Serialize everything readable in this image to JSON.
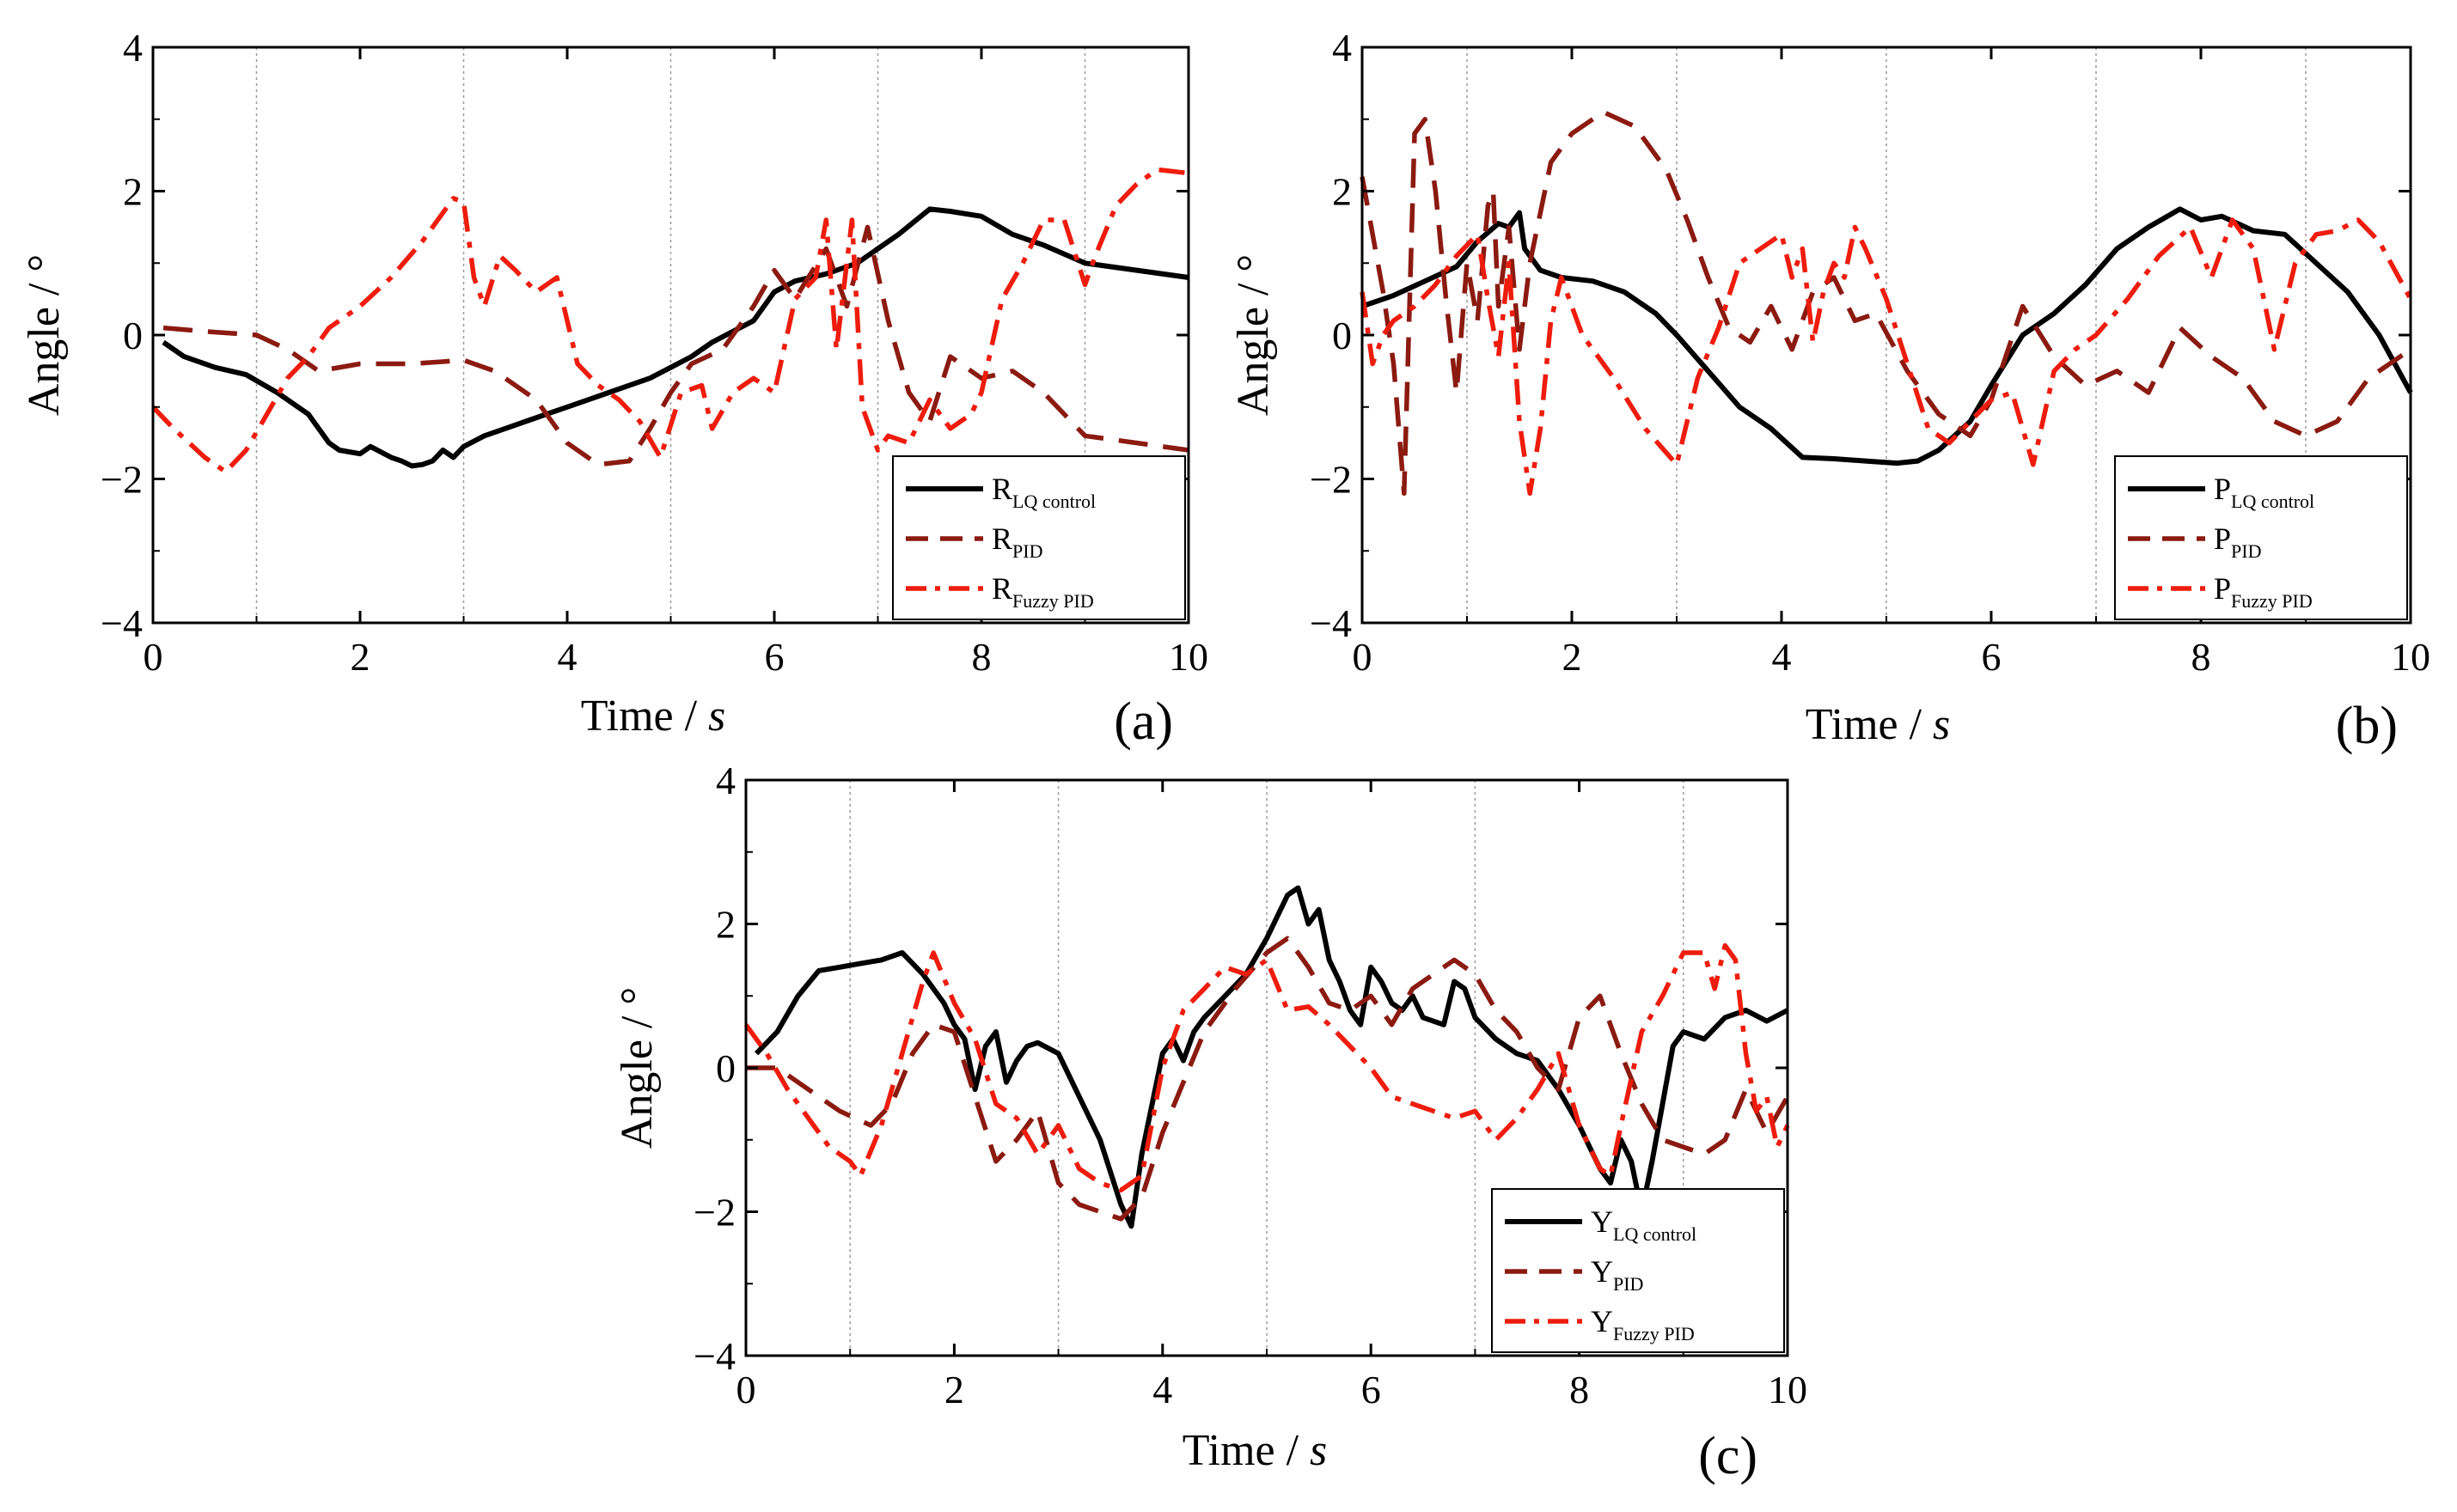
{
  "figure": {
    "panels": [
      "a",
      "b",
      "c"
    ]
  },
  "colors": {
    "lq": "#000000",
    "pid": "#8b1a10",
    "fuzzy": "#ee1c0c",
    "grid": "#999999"
  },
  "chart_data": [
    {
      "type": "line",
      "panel_label": "(a)",
      "xlabel": "Time / ",
      "xlabel_unit": "s",
      "ylabel": "Angle / °",
      "xlim": [
        0,
        10
      ],
      "ylim": [
        -4,
        4
      ],
      "xticks": [
        "0",
        "2",
        "4",
        "6",
        "8",
        "10"
      ],
      "yticks": [
        "4",
        "2",
        "0",
        "−2",
        "−4"
      ],
      "grid_x": [
        1,
        3,
        5,
        7,
        9
      ],
      "legend_position": "bottom-right",
      "series": [
        {
          "name": "R",
          "sub": "LQ control",
          "style": "solid",
          "color": "#000000",
          "x": [
            0.1,
            0.3,
            0.6,
            0.9,
            1.2,
            1.5,
            1.7,
            1.8,
            2.0,
            2.1,
            2.3,
            2.4,
            2.5,
            2.6,
            2.7,
            2.8,
            2.9,
            3.0,
            3.2,
            3.4,
            3.6,
            3.8,
            4.0,
            4.2,
            4.4,
            4.6,
            4.8,
            5.0,
            5.2,
            5.4,
            5.6,
            5.8,
            6.0,
            6.2,
            6.5,
            6.8,
            7.0,
            7.2,
            7.5,
            7.7,
            8.0,
            8.3,
            8.6,
            9.0,
            9.5,
            10.0
          ],
          "y": [
            -0.1,
            -0.3,
            -0.45,
            -0.55,
            -0.8,
            -1.1,
            -1.5,
            -1.6,
            -1.65,
            -1.55,
            -1.7,
            -1.75,
            -1.82,
            -1.8,
            -1.75,
            -1.6,
            -1.7,
            -1.55,
            -1.4,
            -1.3,
            -1.2,
            -1.1,
            -1.0,
            -0.9,
            -0.8,
            -0.7,
            -0.6,
            -0.45,
            -0.3,
            -0.1,
            0.05,
            0.2,
            0.6,
            0.75,
            0.85,
            1.0,
            1.2,
            1.4,
            1.75,
            1.72,
            1.65,
            1.4,
            1.25,
            1.0,
            0.9,
            0.8
          ]
        },
        {
          "name": "R",
          "sub": "PID",
          "style": "dashed",
          "color": "#8b1a10",
          "x": [
            0.1,
            0.5,
            1.0,
            1.3,
            1.6,
            2.0,
            2.5,
            3.0,
            3.3,
            3.7,
            4.0,
            4.3,
            4.6,
            4.8,
            5.0,
            5.2,
            5.5,
            5.8,
            6.0,
            6.2,
            6.5,
            6.7,
            6.9,
            7.1,
            7.3,
            7.5,
            7.7,
            8.0,
            8.3,
            8.6,
            9.0,
            9.5,
            10.0
          ],
          "y": [
            0.1,
            0.05,
            0.0,
            -0.2,
            -0.5,
            -0.4,
            -0.4,
            -0.35,
            -0.5,
            -0.9,
            -1.5,
            -1.8,
            -1.75,
            -1.3,
            -0.8,
            -0.4,
            -0.2,
            0.4,
            0.9,
            0.5,
            1.2,
            0.4,
            1.5,
            0.2,
            -0.8,
            -1.2,
            -0.3,
            -0.6,
            -0.5,
            -0.8,
            -1.4,
            -1.5,
            -1.6
          ]
        },
        {
          "name": "R",
          "sub": "Fuzzy PID",
          "style": "dashdot",
          "color": "#ee1c0c",
          "x": [
            0.0,
            0.2,
            0.5,
            0.7,
            0.9,
            1.1,
            1.3,
            1.5,
            1.7,
            2.0,
            2.3,
            2.6,
            2.9,
            3.0,
            3.1,
            3.2,
            3.35,
            3.5,
            3.7,
            3.9,
            4.1,
            4.3,
            4.5,
            4.7,
            4.9,
            5.1,
            5.3,
            5.4,
            5.6,
            5.8,
            6.0,
            6.2,
            6.4,
            6.5,
            6.6,
            6.75,
            6.85,
            7.0,
            7.1,
            7.3,
            7.5,
            7.7,
            7.8,
            7.9,
            8.0,
            8.2,
            8.4,
            8.6,
            8.8,
            9.0,
            9.1,
            9.3,
            9.5,
            9.7,
            10.0
          ],
          "y": [
            -1.0,
            -1.3,
            -1.7,
            -1.9,
            -1.6,
            -1.1,
            -0.6,
            -0.3,
            0.1,
            0.4,
            0.8,
            1.3,
            1.9,
            1.85,
            0.8,
            0.4,
            1.1,
            0.9,
            0.6,
            0.8,
            -0.4,
            -0.7,
            -0.9,
            -1.2,
            -1.7,
            -0.8,
            -0.7,
            -1.3,
            -0.8,
            -0.6,
            -0.8,
            0.5,
            0.8,
            1.6,
            -0.2,
            1.6,
            -1.0,
            -1.6,
            -1.4,
            -1.5,
            -0.9,
            -1.3,
            -1.2,
            -1.1,
            -0.8,
            0.5,
            1.0,
            1.6,
            1.6,
            0.7,
            1.1,
            1.8,
            2.1,
            2.3,
            2.25
          ]
        }
      ]
    },
    {
      "type": "line",
      "panel_label": "(b)",
      "xlabel": "Time / ",
      "xlabel_unit": "s",
      "ylabel": "Angle / °",
      "xlim": [
        0,
        10
      ],
      "ylim": [
        -4,
        4
      ],
      "xticks": [
        "0",
        "2",
        "4",
        "6",
        "8",
        "10"
      ],
      "yticks": [
        "4",
        "2",
        "0",
        "−2",
        "−4"
      ],
      "grid_x": [
        1,
        3,
        5,
        7,
        9
      ],
      "legend_position": "bottom-right",
      "series": [
        {
          "name": "P",
          "sub": "LQ control",
          "style": "solid",
          "color": "#000000",
          "x": [
            0.0,
            0.3,
            0.6,
            0.9,
            1.1,
            1.3,
            1.4,
            1.5,
            1.55,
            1.6,
            1.7,
            1.9,
            2.2,
            2.5,
            2.8,
            3.0,
            3.3,
            3.6,
            3.9,
            4.2,
            4.5,
            4.8,
            5.1,
            5.3,
            5.5,
            5.8,
            6.0,
            6.3,
            6.6,
            6.9,
            7.2,
            7.5,
            7.8,
            8.0,
            8.2,
            8.5,
            8.8,
            9.1,
            9.4,
            9.7,
            10.0
          ],
          "y": [
            0.4,
            0.55,
            0.75,
            0.95,
            1.3,
            1.55,
            1.5,
            1.7,
            1.2,
            1.1,
            0.9,
            0.8,
            0.75,
            0.6,
            0.3,
            0.0,
            -0.5,
            -1.0,
            -1.3,
            -1.7,
            -1.72,
            -1.75,
            -1.78,
            -1.75,
            -1.6,
            -1.2,
            -0.7,
            0.0,
            0.3,
            0.7,
            1.2,
            1.5,
            1.75,
            1.6,
            1.65,
            1.45,
            1.4,
            1.0,
            0.6,
            0.0,
            -0.8
          ]
        },
        {
          "name": "P",
          "sub": "PID",
          "style": "dashed",
          "color": "#8b1a10",
          "x": [
            0.0,
            0.2,
            0.3,
            0.4,
            0.5,
            0.6,
            0.7,
            0.8,
            0.9,
            1.0,
            1.1,
            1.2,
            1.25,
            1.3,
            1.4,
            1.5,
            1.6,
            1.8,
            2.0,
            2.3,
            2.6,
            2.9,
            3.1,
            3.3,
            3.5,
            3.7,
            3.9,
            4.1,
            4.3,
            4.5,
            4.7,
            4.9,
            5.2,
            5.5,
            5.8,
            6.0,
            6.3,
            6.6,
            6.9,
            7.2,
            7.5,
            7.8,
            8.1,
            8.4,
            8.7,
            9.0,
            9.3,
            9.6,
            10.0
          ],
          "y": [
            2.2,
            0.6,
            -0.4,
            -2.2,
            2.8,
            3.0,
            2.0,
            0.5,
            -0.8,
            1.0,
            0.2,
            1.8,
            2.0,
            0.4,
            1.5,
            -0.2,
            1.0,
            2.4,
            2.8,
            3.1,
            2.9,
            2.3,
            1.6,
            0.8,
            0.1,
            -0.1,
            0.4,
            -0.2,
            0.6,
            0.8,
            0.2,
            0.3,
            -0.5,
            -1.1,
            -1.4,
            -0.9,
            0.4,
            -0.3,
            -0.7,
            -0.5,
            -0.8,
            0.1,
            -0.3,
            -0.6,
            -1.2,
            -1.4,
            -1.2,
            -0.6,
            -0.2
          ]
        },
        {
          "name": "P",
          "sub": "Fuzzy PID",
          "style": "dashdot",
          "color": "#ee1c0c",
          "x": [
            0.0,
            0.1,
            0.2,
            0.3,
            0.5,
            0.7,
            0.9,
            1.1,
            1.2,
            1.3,
            1.4,
            1.5,
            1.6,
            1.7,
            1.8,
            1.9,
            2.1,
            2.4,
            2.7,
            3.0,
            3.2,
            3.4,
            3.6,
            3.8,
            4.0,
            4.1,
            4.2,
            4.3,
            4.4,
            4.5,
            4.6,
            4.7,
            4.8,
            5.0,
            5.2,
            5.4,
            5.6,
            5.8,
            6.0,
            6.2,
            6.4,
            6.6,
            6.8,
            7.0,
            7.3,
            7.6,
            7.9,
            8.1,
            8.3,
            8.5,
            8.7,
            8.9,
            9.1,
            9.3,
            9.5,
            9.7,
            10.0
          ],
          "y": [
            0.6,
            -0.4,
            0.0,
            0.2,
            0.4,
            0.7,
            1.1,
            1.4,
            0.5,
            -0.3,
            1.0,
            -1.2,
            -2.2,
            -1.3,
            0.2,
            0.8,
            0.0,
            -0.6,
            -1.3,
            -1.8,
            -0.6,
            0.1,
            1.0,
            1.2,
            1.4,
            0.8,
            1.2,
            -0.1,
            0.6,
            1.0,
            0.8,
            1.5,
            1.2,
            0.5,
            -0.4,
            -1.3,
            -1.5,
            -1.2,
            -0.9,
            -0.8,
            -1.8,
            -0.5,
            -0.2,
            0.0,
            0.5,
            1.1,
            1.5,
            0.8,
            1.6,
            1.2,
            -0.2,
            1.0,
            1.4,
            1.45,
            1.6,
            1.3,
            0.5
          ]
        }
      ]
    },
    {
      "type": "line",
      "panel_label": "(c)",
      "xlabel": "Time / ",
      "xlabel_unit": "s",
      "ylabel": "Angle / °",
      "xlim": [
        0,
        10
      ],
      "ylim": [
        -4,
        4
      ],
      "xticks": [
        "0",
        "2",
        "4",
        "6",
        "8",
        "10"
      ],
      "yticks": [
        "4",
        "2",
        "0",
        "−2",
        "−4"
      ],
      "grid_x": [
        1,
        3,
        5,
        7,
        9
      ],
      "legend_position": "bottom-right",
      "series": [
        {
          "name": "Y",
          "sub": "LQ control",
          "style": "solid",
          "color": "#000000",
          "x": [
            0.1,
            0.3,
            0.5,
            0.7,
            0.9,
            1.1,
            1.3,
            1.5,
            1.7,
            1.9,
            2.0,
            2.1,
            2.2,
            2.3,
            2.4,
            2.5,
            2.6,
            2.7,
            2.8,
            3.0,
            3.2,
            3.4,
            3.6,
            3.7,
            3.8,
            3.9,
            4.0,
            4.1,
            4.2,
            4.3,
            4.4,
            4.6,
            4.8,
            5.0,
            5.2,
            5.3,
            5.4,
            5.5,
            5.6,
            5.7,
            5.8,
            5.9,
            6.0,
            6.1,
            6.2,
            6.3,
            6.4,
            6.5,
            6.7,
            6.8,
            6.9,
            7.0,
            7.2,
            7.4,
            7.6,
            7.8,
            8.0,
            8.2,
            8.3,
            8.4,
            8.5,
            8.6,
            8.7,
            8.8,
            8.9,
            9.0,
            9.2,
            9.4,
            9.6,
            9.8,
            10.0
          ],
          "y": [
            0.2,
            0.5,
            1.0,
            1.35,
            1.4,
            1.45,
            1.5,
            1.6,
            1.3,
            0.9,
            0.6,
            0.4,
            -0.3,
            0.3,
            0.5,
            -0.2,
            0.1,
            0.3,
            0.35,
            0.2,
            -0.4,
            -1.0,
            -1.9,
            -2.2,
            -1.2,
            -0.5,
            0.2,
            0.4,
            0.1,
            0.5,
            0.7,
            1.0,
            1.3,
            1.8,
            2.4,
            2.5,
            2.0,
            2.2,
            1.5,
            1.2,
            0.8,
            0.6,
            1.4,
            1.2,
            0.9,
            0.8,
            1.0,
            0.7,
            0.6,
            1.2,
            1.1,
            0.7,
            0.4,
            0.2,
            0.1,
            -0.3,
            -0.8,
            -1.4,
            -1.6,
            -1.0,
            -1.3,
            -2.0,
            -1.3,
            -0.5,
            0.3,
            0.5,
            0.4,
            0.7,
            0.8,
            0.65,
            0.8
          ]
        },
        {
          "name": "Y",
          "sub": "PID",
          "style": "dashed",
          "color": "#8b1a10",
          "x": [
            0.0,
            0.3,
            0.6,
            0.9,
            1.2,
            1.4,
            1.6,
            1.8,
            2.0,
            2.2,
            2.4,
            2.6,
            2.8,
            3.0,
            3.2,
            3.4,
            3.6,
            3.8,
            4.0,
            4.2,
            4.4,
            4.7,
            5.0,
            5.2,
            5.4,
            5.6,
            5.8,
            6.0,
            6.2,
            6.4,
            6.6,
            6.8,
            7.0,
            7.2,
            7.4,
            7.6,
            7.8,
            8.0,
            8.2,
            8.4,
            8.6,
            8.8,
            9.0,
            9.2,
            9.4,
            9.6,
            9.8,
            10.0
          ],
          "y": [
            0.0,
            0.0,
            -0.3,
            -0.6,
            -0.8,
            -0.5,
            0.2,
            0.6,
            0.5,
            -0.4,
            -1.3,
            -1.0,
            -0.6,
            -1.6,
            -1.9,
            -2.0,
            -2.1,
            -1.8,
            -0.9,
            -0.2,
            0.5,
            1.1,
            1.6,
            1.8,
            1.4,
            0.9,
            0.8,
            1.0,
            0.6,
            1.1,
            1.3,
            1.5,
            1.3,
            0.8,
            0.5,
            0.0,
            -0.3,
            0.7,
            1.0,
            0.2,
            -0.5,
            -1.0,
            -1.1,
            -1.2,
            -1.0,
            -0.3,
            -0.9,
            -0.4
          ]
        },
        {
          "name": "Y",
          "sub": "Fuzzy PID",
          "style": "dashdot",
          "color": "#ee1c0c",
          "x": [
            0.0,
            0.2,
            0.4,
            0.6,
            0.8,
            1.0,
            1.1,
            1.3,
            1.5,
            1.7,
            1.8,
            2.0,
            2.2,
            2.4,
            2.6,
            2.8,
            3.0,
            3.2,
            3.4,
            3.6,
            3.8,
            4.0,
            4.2,
            4.4,
            4.6,
            4.8,
            5.0,
            5.2,
            5.4,
            5.6,
            5.8,
            6.0,
            6.2,
            6.4,
            6.6,
            6.8,
            7.0,
            7.2,
            7.4,
            7.6,
            7.8,
            8.0,
            8.2,
            8.3,
            8.4,
            8.6,
            8.8,
            9.0,
            9.2,
            9.3,
            9.4,
            9.5,
            9.6,
            9.7,
            9.8,
            9.9,
            10.0
          ],
          "y": [
            0.6,
            0.2,
            -0.3,
            -0.7,
            -1.1,
            -1.3,
            -1.5,
            -0.8,
            0.2,
            1.2,
            1.6,
            0.9,
            0.4,
            -0.5,
            -0.7,
            -1.2,
            -0.8,
            -1.4,
            -1.6,
            -1.7,
            -1.5,
            0.0,
            0.8,
            1.1,
            1.4,
            1.3,
            1.5,
            0.8,
            0.85,
            0.6,
            0.3,
            0.0,
            -0.4,
            -0.5,
            -0.6,
            -0.7,
            -0.6,
            -1.0,
            -0.7,
            -0.3,
            0.2,
            -0.8,
            -1.4,
            -1.5,
            -0.8,
            0.5,
            1.0,
            1.6,
            1.6,
            1.1,
            1.7,
            1.5,
            0.2,
            -0.6,
            -0.4,
            -1.1,
            -0.8
          ]
        }
      ]
    }
  ]
}
